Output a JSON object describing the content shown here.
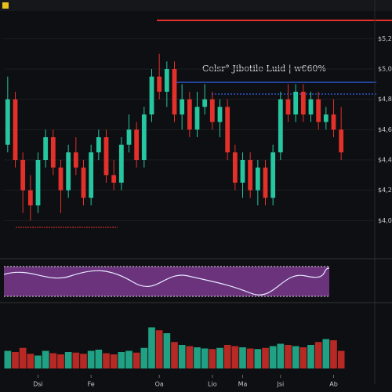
{
  "chart_data": {
    "type": "candlestick",
    "title": "Celsr° Jibotile Luid | w€60%",
    "up_color": "#26c6a0",
    "down_color": "#e2302a",
    "open": [
      4500,
      4800,
      4400,
      4200,
      4100,
      4400,
      4550,
      4350,
      4200,
      4450,
      4350,
      4150,
      4450,
      4550,
      4300,
      4250,
      4500,
      4600,
      4400,
      4700,
      4950,
      4850,
      5000,
      4700,
      4800,
      4600,
      4750,
      4800,
      4650,
      4750,
      4450,
      4250,
      4400,
      4200,
      4350,
      4150,
      4450,
      4800,
      4700,
      4850,
      4700,
      4800,
      4650,
      4700,
      4600
    ],
    "high": [
      4950,
      4850,
      4450,
      4300,
      4450,
      4600,
      4600,
      4400,
      4500,
      4550,
      4400,
      4500,
      4600,
      4600,
      4400,
      4550,
      4700,
      4650,
      4750,
      5000,
      5100,
      5050,
      5050,
      4900,
      4850,
      4850,
      4900,
      4850,
      4800,
      4800,
      4500,
      4450,
      4450,
      4400,
      4400,
      4500,
      4850,
      4900,
      4900,
      4900,
      4850,
      4850,
      4750,
      4800,
      4750
    ],
    "low": [
      4450,
      4350,
      4050,
      4000,
      4050,
      4350,
      4300,
      4050,
      4150,
      4300,
      4100,
      4100,
      4400,
      4250,
      4200,
      4200,
      4450,
      4350,
      4350,
      4650,
      4800,
      4750,
      4650,
      4600,
      4550,
      4550,
      4700,
      4600,
      4550,
      4400,
      4200,
      4150,
      4150,
      4100,
      4100,
      4100,
      4400,
      4650,
      4650,
      4650,
      4650,
      4600,
      4600,
      4550,
      4400
    ],
    "close": [
      4800,
      4400,
      4200,
      4100,
      4400,
      4550,
      4350,
      4200,
      4450,
      4350,
      4150,
      4450,
      4550,
      4300,
      4250,
      4500,
      4600,
      4400,
      4700,
      4950,
      4850,
      5000,
      4700,
      4800,
      4600,
      4750,
      4800,
      4650,
      4750,
      4450,
      4250,
      4400,
      4200,
      4350,
      4150,
      4450,
      4800,
      4700,
      4850,
      4700,
      4800,
      4650,
      4700,
      4600,
      4450
    ],
    "volume": [
      30,
      28,
      35,
      25,
      22,
      30,
      26,
      24,
      28,
      27,
      25,
      30,
      32,
      26,
      24,
      28,
      30,
      27,
      35,
      70,
      65,
      60,
      45,
      40,
      38,
      36,
      34,
      33,
      35,
      40,
      38,
      36,
      34,
      33,
      35,
      38,
      42,
      40,
      38,
      36,
      40,
      45,
      50,
      48,
      30
    ],
    "ylim": [
      3800,
      5300
    ],
    "yticks": [
      {
        "value": 4000,
        "label": "$4,000"
      },
      {
        "value": 4200,
        "label": "$4,200"
      },
      {
        "value": 4400,
        "label": "$4,400"
      },
      {
        "value": 4600,
        "label": "$4,600"
      },
      {
        "value": 4800,
        "label": "$4,800"
      },
      {
        "value": 5000,
        "label": "$5,000"
      },
      {
        "value": 5200,
        "label": "$5,200"
      }
    ],
    "vlim": [
      0,
      100
    ],
    "xticks": [
      {
        "value": 4,
        "label": "Dsi"
      },
      {
        "value": 11,
        "label": "Fe"
      },
      {
        "value": 20,
        "label": "Oa"
      },
      {
        "value": 27,
        "label": "Lio"
      },
      {
        "value": 31,
        "label": "Ma"
      },
      {
        "value": 36,
        "label": "Jsi"
      },
      {
        "value": 43,
        "label": "Ab"
      }
    ]
  }
}
